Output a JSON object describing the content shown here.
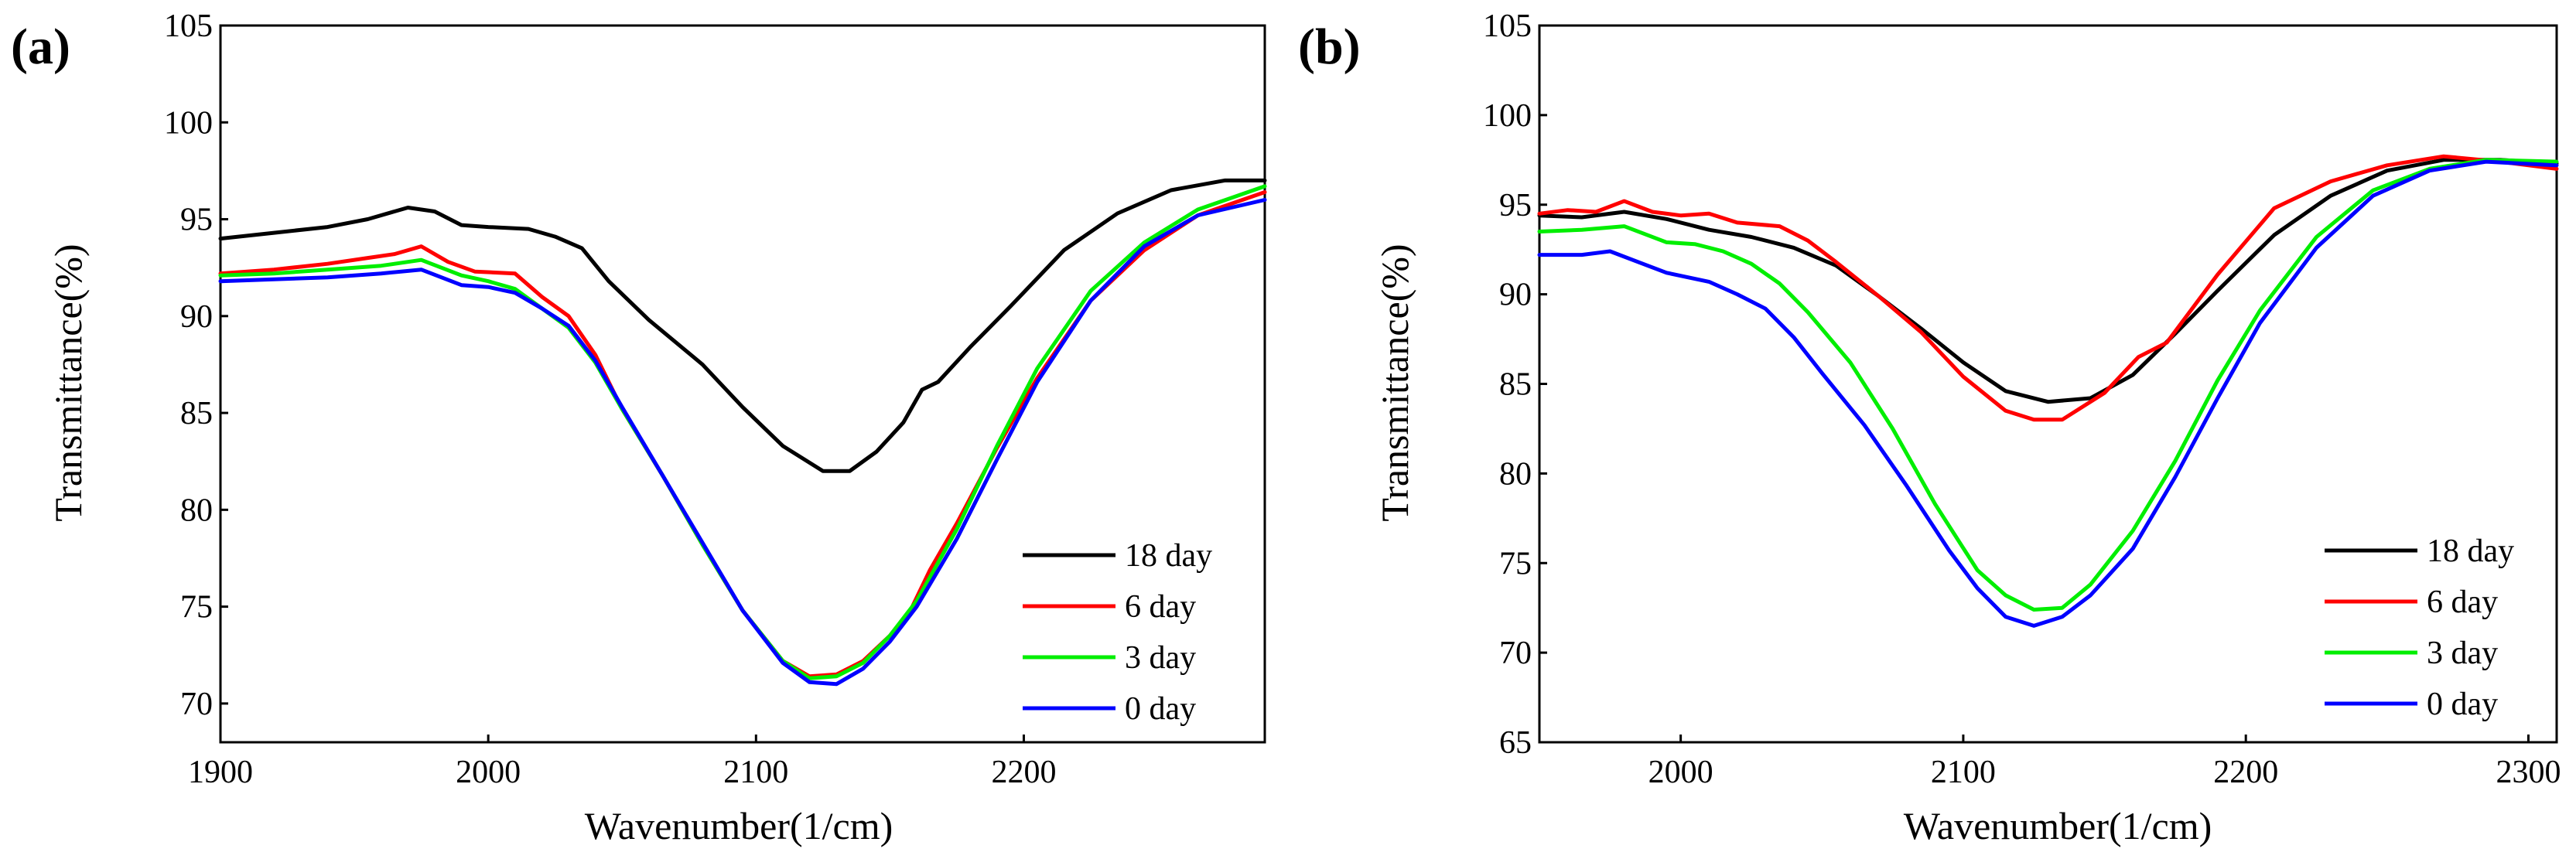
{
  "colors": {
    "18 day": "#000000",
    "6 day": "#ff0000",
    "3 day": "#00ee00",
    "0 day": "#0000ff"
  },
  "chart_data": [
    {
      "panel": "(a)",
      "type": "line",
      "xlabel": "Wavenumber(1/cm)",
      "ylabel": "Transmittance(%)",
      "xlim": [
        1900,
        2290
      ],
      "ylim": [
        68,
        105
      ],
      "xticks": [
        1900,
        2000,
        2100,
        2200
      ],
      "yticks": [
        70,
        75,
        80,
        85,
        90,
        95,
        100,
        105
      ],
      "legend_position": "bottom-right",
      "series": [
        {
          "name": "18 day",
          "x": [
            1900,
            1920,
            1940,
            1955,
            1970,
            1980,
            1990,
            2000,
            2015,
            2025,
            2035,
            2045,
            2060,
            2080,
            2095,
            2110,
            2125,
            2135,
            2145,
            2155,
            2162,
            2168,
            2180,
            2195,
            2215,
            2235,
            2255,
            2275,
            2290
          ],
          "y": [
            94,
            94.3,
            94.6,
            95,
            95.6,
            95.4,
            94.7,
            94.6,
            94.5,
            94.1,
            93.5,
            91.8,
            89.8,
            87.5,
            85.3,
            83.3,
            82,
            82,
            83,
            84.5,
            86.2,
            86.6,
            88.4,
            90.5,
            93.4,
            95.3,
            96.5,
            97,
            97
          ]
        },
        {
          "name": "6 day",
          "x": [
            1900,
            1920,
            1940,
            1955,
            1965,
            1975,
            1985,
            1995,
            2010,
            2020,
            2030,
            2040,
            2050,
            2065,
            2080,
            2095,
            2110,
            2120,
            2130,
            2140,
            2150,
            2158,
            2165,
            2175,
            2190,
            2205,
            2225,
            2245,
            2265,
            2290
          ],
          "y": [
            92.2,
            92.4,
            92.7,
            93,
            93.2,
            93.6,
            92.8,
            92.3,
            92.2,
            91,
            90,
            88,
            85.2,
            81.8,
            78.2,
            74.8,
            72.2,
            71.4,
            71.5,
            72.2,
            73.5,
            74.9,
            76.9,
            79.3,
            83.2,
            86.8,
            90.8,
            93.4,
            95.2,
            96.4
          ]
        },
        {
          "name": "3 day",
          "x": [
            1900,
            1920,
            1940,
            1960,
            1975,
            1990,
            2000,
            2010,
            2020,
            2030,
            2040,
            2050,
            2065,
            2080,
            2095,
            2110,
            2120,
            2130,
            2140,
            2150,
            2160,
            2175,
            2190,
            2205,
            2225,
            2245,
            2265,
            2290
          ],
          "y": [
            92.1,
            92.2,
            92.4,
            92.6,
            92.9,
            92.1,
            91.8,
            91.4,
            90.4,
            89.4,
            87.6,
            85.2,
            81.8,
            78.2,
            74.8,
            72.2,
            71.3,
            71.4,
            72.1,
            73.5,
            75.3,
            79,
            83.3,
            87.3,
            91.3,
            93.8,
            95.5,
            96.7
          ]
        },
        {
          "name": "0 day",
          "x": [
            1900,
            1920,
            1940,
            1960,
            1975,
            1990,
            2000,
            2010,
            2020,
            2030,
            2040,
            2050,
            2065,
            2080,
            2095,
            2110,
            2120,
            2130,
            2140,
            2150,
            2160,
            2175,
            2190,
            2205,
            2225,
            2245,
            2265,
            2290
          ],
          "y": [
            91.8,
            91.9,
            92,
            92.2,
            92.4,
            91.6,
            91.5,
            91.2,
            90.4,
            89.5,
            87.7,
            85.3,
            81.8,
            78.3,
            74.8,
            72.1,
            71.1,
            71,
            71.8,
            73.2,
            75,
            78.5,
            82.6,
            86.6,
            90.8,
            93.6,
            95.2,
            96
          ]
        }
      ]
    },
    {
      "panel": "(b)",
      "type": "line",
      "xlabel": "Wavenumber(1/cm)",
      "ylabel": "Transmittance(%)",
      "xlim": [
        1950,
        2310
      ],
      "ylim": [
        65,
        105
      ],
      "xticks": [
        2000,
        2100,
        2200,
        2300
      ],
      "yticks": [
        65,
        70,
        75,
        80,
        85,
        90,
        95,
        100,
        105
      ],
      "legend_position": "bottom-right",
      "series": [
        {
          "name": "18 day",
          "x": [
            1950,
            1965,
            1980,
            1995,
            2010,
            2025,
            2040,
            2055,
            2070,
            2085,
            2100,
            2115,
            2130,
            2145,
            2160,
            2175,
            2190,
            2210,
            2230,
            2250,
            2270,
            2290,
            2310
          ],
          "y": [
            94.4,
            94.3,
            94.6,
            94.2,
            93.6,
            93.2,
            92.6,
            91.6,
            89.9,
            88.1,
            86.2,
            84.6,
            84,
            84.2,
            85.5,
            87.8,
            90.2,
            93.3,
            95.5,
            96.9,
            97.5,
            97.5,
            97.3
          ]
        },
        {
          "name": "6 day",
          "x": [
            1950,
            1960,
            1970,
            1980,
            1990,
            2000,
            2010,
            2020,
            2035,
            2045,
            2055,
            2070,
            2085,
            2100,
            2115,
            2125,
            2135,
            2150,
            2162,
            2172,
            2190,
            2210,
            2230,
            2250,
            2270,
            2290,
            2310
          ],
          "y": [
            94.5,
            94.7,
            94.6,
            95.2,
            94.6,
            94.4,
            94.5,
            94,
            93.8,
            93,
            91.8,
            89.9,
            87.9,
            85.4,
            83.5,
            83,
            83,
            84.5,
            86.5,
            87.3,
            91.1,
            94.8,
            96.3,
            97.2,
            97.7,
            97.4,
            97
          ]
        },
        {
          "name": "3 day",
          "x": [
            1950,
            1965,
            1980,
            1995,
            2005,
            2015,
            2025,
            2035,
            2045,
            2060,
            2075,
            2090,
            2105,
            2115,
            2125,
            2135,
            2145,
            2160,
            2175,
            2190,
            2205,
            2225,
            2245,
            2265,
            2285,
            2310
          ],
          "y": [
            93.5,
            93.6,
            93.8,
            92.9,
            92.8,
            92.4,
            91.7,
            90.6,
            89,
            86.2,
            82.5,
            78.3,
            74.6,
            73.2,
            72.4,
            72.5,
            73.8,
            76.8,
            80.7,
            85.2,
            89.1,
            93.2,
            95.8,
            97,
            97.5,
            97.4
          ]
        },
        {
          "name": "0 day",
          "x": [
            1950,
            1965,
            1975,
            1985,
            1995,
            2010,
            2020,
            2030,
            2040,
            2050,
            2065,
            2080,
            2095,
            2105,
            2115,
            2125,
            2135,
            2145,
            2160,
            2175,
            2190,
            2205,
            2225,
            2245,
            2265,
            2285,
            2310
          ],
          "y": [
            92.2,
            92.2,
            92.4,
            91.8,
            91.2,
            90.7,
            90,
            89.2,
            87.6,
            85.6,
            82.7,
            79.3,
            75.7,
            73.6,
            72,
            71.5,
            72,
            73.2,
            75.8,
            79.8,
            84.2,
            88.4,
            92.6,
            95.5,
            96.9,
            97.4,
            97.2
          ]
        }
      ]
    }
  ]
}
